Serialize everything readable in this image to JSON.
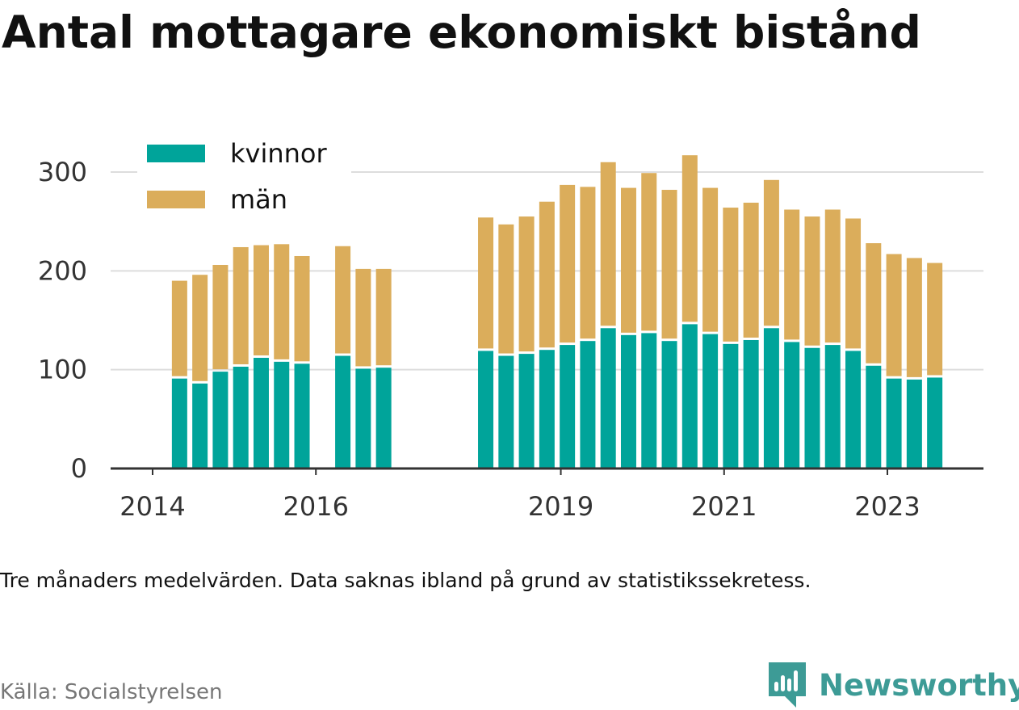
{
  "title": "Antal mottagare ekonomiskt bistånd",
  "note": "Tre månaders medelvärden. Data saknas ibland på grund av statistikssekretess.",
  "source": "Källa: Socialstyrelsen",
  "brand": {
    "name": "Newsworthy",
    "logo_icon": "newsworthy-logo-icon",
    "color": "#3d9b96"
  },
  "colors": {
    "kvinnor": "#00a49a",
    "man": "#dbad5b",
    "grid": "#dddddd",
    "axis": "#333333"
  },
  "chart_data": {
    "type": "bar",
    "stacked": true,
    "ylim": [
      0,
      320
    ],
    "yticks": [
      0,
      100,
      200,
      300
    ],
    "xlabel": "",
    "ylabel": "",
    "grid": "horizontal",
    "legend_position": "top-left",
    "xticks": [
      {
        "label": "2014",
        "t": 2014.0
      },
      {
        "label": "2016",
        "t": 2016.0
      },
      {
        "label": "2019",
        "t": 2019.0
      },
      {
        "label": "2021",
        "t": 2021.0
      },
      {
        "label": "2023",
        "t": 2023.0
      }
    ],
    "x": [
      2014.33,
      2014.58,
      2014.83,
      2015.08,
      2015.33,
      2015.58,
      2015.83,
      2016.33,
      2016.58,
      2016.83,
      2018.08,
      2018.33,
      2018.58,
      2018.83,
      2019.08,
      2019.33,
      2019.58,
      2019.83,
      2020.08,
      2020.33,
      2020.58,
      2020.83,
      2021.08,
      2021.33,
      2021.58,
      2021.83,
      2022.08,
      2022.33,
      2022.58,
      2022.83,
      2023.08,
      2023.33,
      2023.58
    ],
    "series": [
      {
        "name": "kvinnor",
        "color": "#00a49a",
        "values": [
          91,
          86,
          98,
          103,
          112,
          108,
          106,
          114,
          101,
          102,
          119,
          114,
          116,
          120,
          125,
          129,
          142,
          135,
          137,
          129,
          146,
          136,
          126,
          130,
          142,
          128,
          122,
          125,
          119,
          104,
          91,
          90,
          92
        ]
      },
      {
        "name": "män",
        "color": "#dbad5b",
        "values": [
          99,
          110,
          108,
          121,
          114,
          119,
          109,
          111,
          101,
          100,
          135,
          133,
          139,
          150,
          162,
          156,
          168,
          149,
          162,
          153,
          171,
          148,
          138,
          139,
          150,
          134,
          133,
          137,
          134,
          124,
          126,
          123,
          116
        ]
      }
    ]
  }
}
